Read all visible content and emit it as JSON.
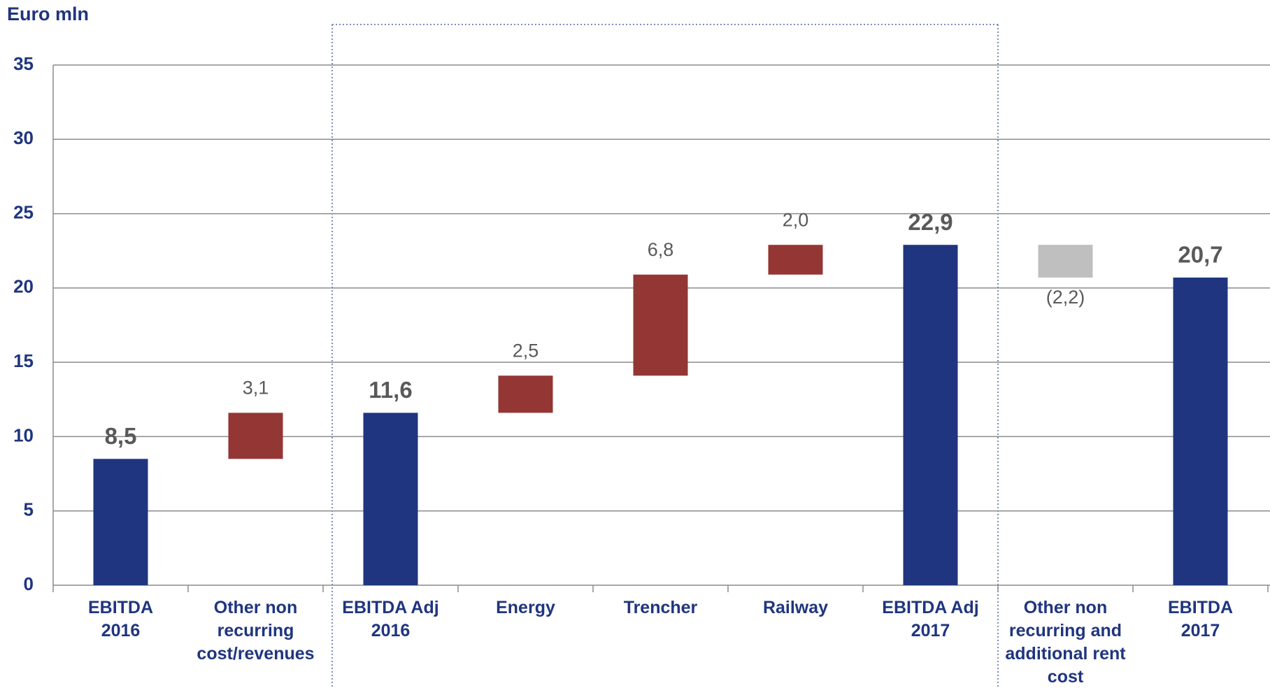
{
  "chart_data": {
    "type": "waterfall",
    "y_axis_label": "Euro mln",
    "categories": [
      "EBITDA\n2016",
      "Other non\nrecurring\ncost/revenues",
      "EBITDA Adj\n2016",
      "Energy",
      "Trencher",
      "Railway",
      "EBITDA Adj\n2017",
      "Other non\nrecurring and\nadditional rent\ncost",
      "EBITDA\n2017"
    ],
    "values": [
      8.5,
      3.1,
      11.6,
      2.5,
      6.8,
      2.0,
      22.9,
      -2.2,
      20.7
    ],
    "value_labels": [
      "8,5",
      "3,1",
      "11,6",
      "2,5",
      "6,8",
      "2,0",
      "22,9",
      "(2,2)",
      "20,7"
    ],
    "totals": [
      true,
      false,
      true,
      false,
      false,
      false,
      true,
      false,
      true
    ],
    "colors": [
      "#1f357f",
      "#943634",
      "#1f357f",
      "#943634",
      "#943634",
      "#943634",
      "#1f357f",
      "#bfbfbf",
      "#1f357f"
    ],
    "ylim": [
      0,
      35
    ],
    "yticks": [
      0,
      5,
      10,
      15,
      20,
      25,
      30,
      35
    ],
    "grid": true
  }
}
